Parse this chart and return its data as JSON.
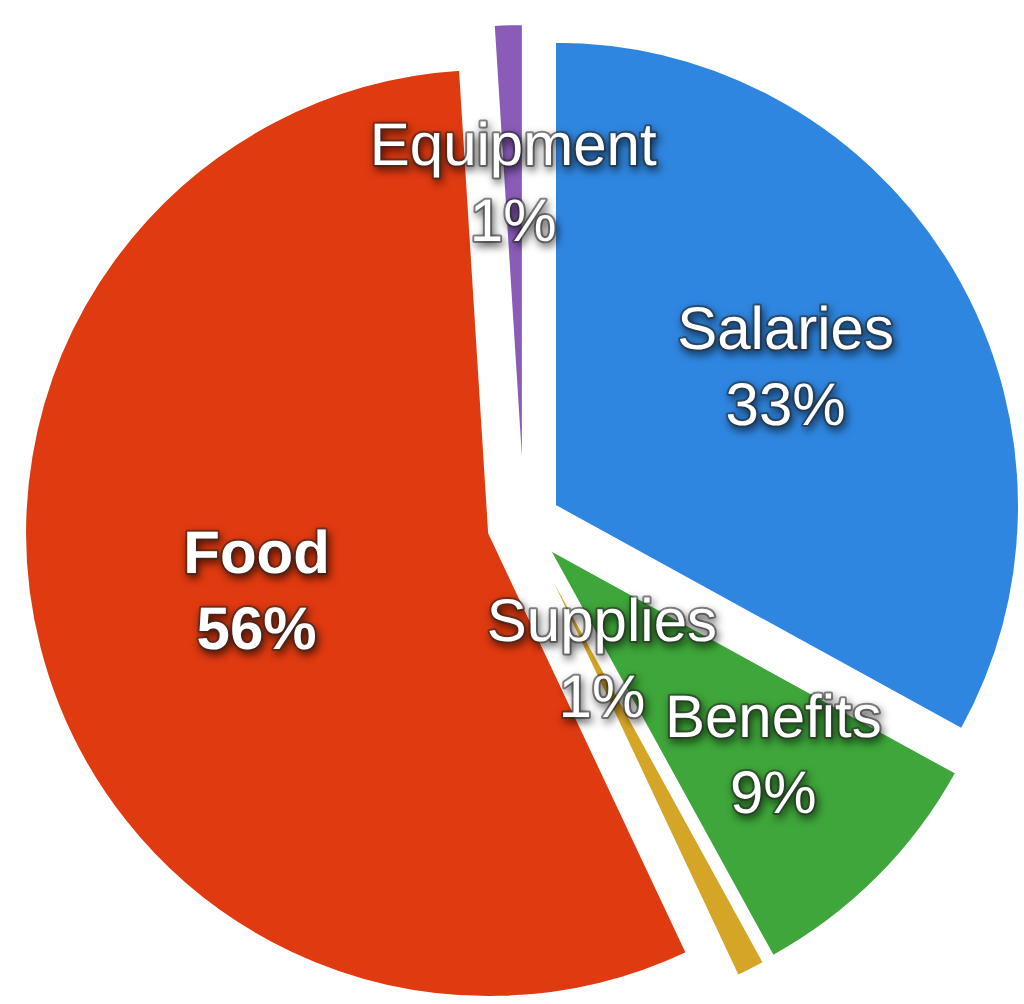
{
  "chart_data": {
    "type": "pie",
    "categories": [
      "Salaries",
      "Benefits",
      "Supplies",
      "Food",
      "Equipment"
    ],
    "values": [
      33,
      9,
      1,
      56,
      1
    ],
    "colors": [
      "#2f86e0",
      "#3ea63a",
      "#d4a526",
      "#e03a10",
      "#8a5cb8"
    ],
    "value_labels": [
      "33%",
      "9%",
      "1%",
      "56%",
      "1%"
    ]
  }
}
